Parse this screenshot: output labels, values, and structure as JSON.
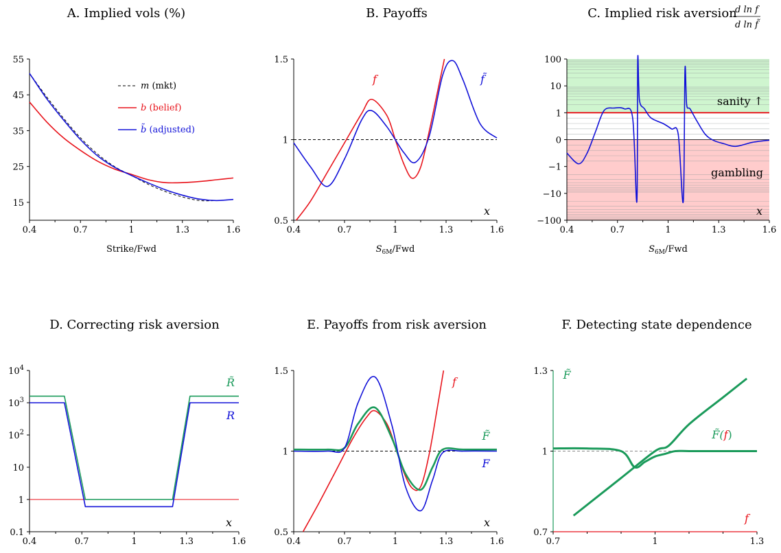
{
  "chart_data": [
    {
      "id": "A",
      "type": "line",
      "title": "A. Implied vols (%)",
      "xlabel": "Strike/Fwd",
      "xlim": [
        0.4,
        1.6
      ],
      "ylim": [
        10,
        55
      ],
      "xticks": [
        "0.4",
        "0.7",
        "1",
        "1.3",
        "1.6"
      ],
      "xtick_values": [
        0.4,
        0.7,
        1.0,
        1.3,
        1.6
      ],
      "yticks": [
        "15",
        "25",
        "35",
        "45",
        "55"
      ],
      "ytick_values": [
        15,
        25,
        35,
        45,
        55
      ],
      "legend_position": "top-right",
      "series": [
        {
          "name": "m (mkt)",
          "color": "#000000",
          "dash": true,
          "x": [
            0.4,
            0.5,
            0.6,
            0.7,
            0.8,
            0.9,
            1.0,
            1.1,
            1.2,
            1.3,
            1.4,
            1.5,
            1.6
          ],
          "y": [
            51,
            44.5,
            38.5,
            33,
            28.5,
            25,
            22.5,
            20,
            18,
            16.5,
            15.5,
            15.5,
            15.8
          ]
        },
        {
          "name": "b (belief)",
          "color": "#e8121a",
          "dash": false,
          "x": [
            0.4,
            0.5,
            0.6,
            0.7,
            0.8,
            0.9,
            1.0,
            1.1,
            1.2,
            1.3,
            1.4,
            1.5,
            1.6
          ],
          "y": [
            43,
            37.5,
            33,
            29.5,
            26.5,
            24.3,
            22.8,
            21.3,
            20.5,
            20.5,
            20.8,
            21.3,
            21.8
          ]
        },
        {
          "name": "b̃ (adjusted)",
          "color": "#1010d8",
          "dash": false,
          "x": [
            0.4,
            0.5,
            0.6,
            0.7,
            0.8,
            0.9,
            1.0,
            1.1,
            1.2,
            1.3,
            1.4,
            1.5,
            1.6
          ],
          "y": [
            51,
            44,
            38,
            32.5,
            28,
            24.8,
            22.5,
            20.4,
            18.5,
            17,
            15.9,
            15.5,
            15.8
          ]
        }
      ]
    },
    {
      "id": "B",
      "type": "line",
      "title": "B. Payoffs",
      "xlabel": "S6M/Fwd",
      "xlim": [
        0.4,
        1.6
      ],
      "ylim": [
        0.5,
        1.5
      ],
      "xticks": [
        "0.4",
        "0.7",
        "1",
        "1.3",
        "1.6"
      ],
      "xtick_values": [
        0.4,
        0.7,
        1.0,
        1.3,
        1.6
      ],
      "yticks": [
        "0.5",
        "1",
        "1.5"
      ],
      "ytick_values": [
        0.5,
        1.0,
        1.5
      ],
      "reference_line": 1.0,
      "corner_label": "x",
      "series": [
        {
          "name": "f",
          "color": "#e8121a",
          "x": [
            0.415,
            0.5,
            0.6,
            0.7,
            0.8,
            0.86,
            0.95,
            1.0,
            1.05,
            1.1,
            1.15,
            1.2,
            1.25,
            1.29
          ],
          "y": [
            0.5,
            0.62,
            0.8,
            0.98,
            1.16,
            1.25,
            1.15,
            1.0,
            0.85,
            0.76,
            0.83,
            1.05,
            1.3,
            1.5
          ]
        },
        {
          "name": "f̃",
          "color": "#1010d8",
          "x": [
            0.4,
            0.5,
            0.6,
            0.7,
            0.8,
            0.86,
            0.95,
            1.05,
            1.12,
            1.2,
            1.28,
            1.34,
            1.4,
            1.5,
            1.6
          ],
          "y": [
            0.98,
            0.83,
            0.71,
            0.88,
            1.12,
            1.18,
            1.08,
            0.92,
            0.86,
            1.02,
            1.4,
            1.49,
            1.37,
            1.1,
            1.01
          ]
        }
      ]
    },
    {
      "id": "C",
      "type": "line",
      "title": "C. Implied risk aversion",
      "xlabel": "S6M/Fwd",
      "xlim": [
        0.4,
        1.6
      ],
      "yscale": "symlog",
      "ylim": [
        -100,
        100
      ],
      "xticks": [
        "0.4",
        "0.7",
        "1",
        "1.3",
        "1.6"
      ],
      "xtick_values": [
        0.4,
        0.7,
        1.0,
        1.3,
        1.6
      ],
      "yticks": [
        "100",
        "10",
        "1",
        "0",
        "−1",
        "−10",
        "−100"
      ],
      "ytick_values": [
        100,
        10,
        1,
        0,
        -1,
        -10,
        -100
      ],
      "regions": {
        "sanity_color": "#cff5cf",
        "gambling_color": "#ffcccc"
      },
      "annotations": [
        "sanity ↑",
        "gambling"
      ],
      "corner_label": "x",
      "series": [
        {
          "name": "sanity line",
          "color": "#e8121a",
          "x": [
            0.4,
            1.6
          ],
          "y": [
            1,
            1
          ]
        },
        {
          "name": "implied risk aversion",
          "color": "#1010d8",
          "x": [
            0.4,
            0.47,
            0.52,
            0.57,
            0.62,
            0.68,
            0.74,
            0.79,
            0.815,
            0.82,
            0.83,
            0.86,
            0.9,
            0.97,
            1.02,
            1.06,
            1.09,
            1.1,
            1.11,
            1.13,
            1.17,
            1.22,
            1.27,
            1.33,
            1.4,
            1.5,
            1.6
          ],
          "y": [
            -0.5,
            -0.9,
            -0.5,
            0.3,
            1.2,
            1.5,
            1.4,
            0.8,
            -20,
            100,
            3,
            1.4,
            0.8,
            0.6,
            0.4,
            0.2,
            -20,
            40,
            2,
            1.4,
            0.7,
            0.2,
            -0.03,
            -0.15,
            -0.25,
            -0.1,
            -0.02
          ]
        }
      ]
    },
    {
      "id": "D",
      "type": "line",
      "title": "D. Correcting risk aversion",
      "xlim": [
        0.4,
        1.6
      ],
      "yscale": "log",
      "ylim": [
        0.1,
        10000
      ],
      "xticks": [
        "0.4",
        "0.7",
        "1",
        "1.3",
        "1.6"
      ],
      "xtick_values": [
        0.4,
        0.7,
        1.0,
        1.3,
        1.6
      ],
      "yticks": [
        "0.1",
        "1",
        "10",
        "10²",
        "10³",
        "10⁴"
      ],
      "ytick_values": [
        0.1,
        1,
        10,
        100,
        1000,
        10000
      ],
      "corner_label": "x",
      "series": [
        {
          "name": "reference 1",
          "color": "#e8121a",
          "x": [
            0.4,
            1.6
          ],
          "y": [
            1,
            1
          ]
        },
        {
          "name": "R̃",
          "color": "#1a9a5a",
          "x": [
            0.4,
            0.6,
            0.72,
            1.22,
            1.32,
            1.6
          ],
          "y": [
            1600,
            1600,
            1,
            1,
            1600,
            1600
          ]
        },
        {
          "name": "R",
          "color": "#1010d8",
          "x": [
            0.4,
            0.6,
            0.72,
            1.22,
            1.32,
            1.6
          ],
          "y": [
            1000,
            1000,
            0.6,
            0.6,
            1000,
            1000
          ]
        }
      ],
      "labels": [
        "R̃",
        "R"
      ]
    },
    {
      "id": "E",
      "type": "line",
      "title": "E. Payoffs from risk aversion",
      "xlim": [
        0.4,
        1.6
      ],
      "ylim": [
        0.5,
        1.5
      ],
      "xticks": [
        "0.4",
        "0.7",
        "1",
        "1.3",
        "1.6"
      ],
      "xtick_values": [
        0.4,
        0.7,
        1.0,
        1.3,
        1.6
      ],
      "yticks": [
        "0.5",
        "1",
        "1.5"
      ],
      "ytick_values": [
        0.5,
        1.0,
        1.5
      ],
      "reference_line": 1.0,
      "corner_label": "x",
      "series": [
        {
          "name": "f",
          "color": "#e8121a",
          "x": [
            0.455,
            0.55,
            0.65,
            0.75,
            0.83,
            0.88,
            0.95,
            1.0,
            1.05,
            1.1,
            1.15,
            1.2,
            1.25,
            1.285
          ],
          "y": [
            0.5,
            0.68,
            0.88,
            1.08,
            1.21,
            1.25,
            1.17,
            1.03,
            0.87,
            0.77,
            0.78,
            0.98,
            1.28,
            1.5
          ]
        },
        {
          "name": "F̃",
          "color": "#1a9a5a",
          "x": [
            0.4,
            0.6,
            0.7,
            0.78,
            0.88,
            0.98,
            1.06,
            1.15,
            1.22,
            1.28,
            1.4,
            1.6
          ],
          "y": [
            1.01,
            1.01,
            1.02,
            1.17,
            1.27,
            1.08,
            0.86,
            0.76,
            0.9,
            1.01,
            1.01,
            1.01
          ]
        },
        {
          "name": "F",
          "color": "#1010d8",
          "x": [
            0.4,
            0.6,
            0.7,
            0.78,
            0.88,
            0.98,
            1.06,
            1.15,
            1.22,
            1.28,
            1.4,
            1.6
          ],
          "y": [
            1.0,
            1.0,
            1.02,
            1.3,
            1.46,
            1.16,
            0.78,
            0.63,
            0.82,
            0.99,
            1.0,
            1.0
          ]
        }
      ]
    },
    {
      "id": "F",
      "type": "line",
      "title": "F. Detecting state dependence",
      "xlim": [
        0.7,
        1.3
      ],
      "ylim": [
        0.7,
        1.3
      ],
      "xticks": [
        "0.7",
        "1",
        "1.3"
      ],
      "xtick_values": [
        0.7,
        1.0,
        1.3
      ],
      "yticks": [
        "0.7",
        "1",
        "1.3"
      ],
      "ytick_values": [
        0.7,
        1.0,
        1.3
      ],
      "reference_line": 1.0,
      "axis_names": {
        "x": "f",
        "y": "F̃"
      },
      "series": [
        {
          "name": "F̃(f)",
          "color": "#1a9a5a",
          "x": [
            0.7,
            0.8,
            0.9,
            0.94,
            0.97,
            1.0,
            1.03,
            1.06,
            1.1,
            1.2,
            1.3
          ],
          "y": [
            1.01,
            1.01,
            1.0,
            0.94,
            0.96,
            0.98,
            0.99,
            1.0,
            1.0,
            1.0,
            1.0
          ]
        },
        {
          "name": "F̃ diagonal",
          "color": "#1a9a5a",
          "x": [
            0.76,
            0.9,
            1.0,
            1.04,
            1.1,
            1.2,
            1.27
          ],
          "y": [
            0.76,
            0.9,
            1.0,
            1.02,
            1.1,
            1.2,
            1.27
          ]
        }
      ]
    }
  ],
  "legend_A": {
    "m": "m",
    "m_rest": " (mkt)",
    "b": "b",
    "b_rest": " (belief)",
    "bt": "b̃",
    "bt_rest": " (adjusted)"
  },
  "labels": {
    "B_f": "f",
    "B_ft": "f̃",
    "C_title_frac_top": "d ln f",
    "C_title_frac_bottom": "d ln f̃",
    "C_sanity": "sanity ↑",
    "C_gambling": "gambling",
    "D_Rt": "R̃",
    "D_R": "R",
    "E_f": "f",
    "E_Ft": "F̃",
    "E_F": "F",
    "F_Ft_axis": "F̃",
    "F_curve": "F̃(",
    "F_curve_f": "f",
    "F_curve_close": ")",
    "F_f_axis": "f",
    "x_corner": "x"
  }
}
